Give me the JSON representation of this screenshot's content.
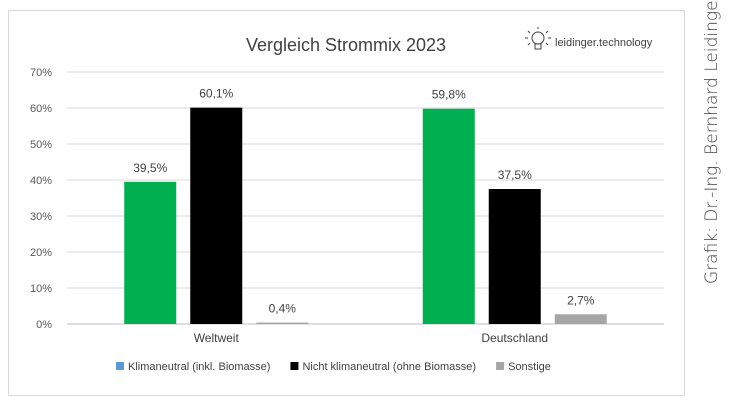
{
  "chart_data": {
    "type": "bar",
    "title": "Vergleich Strommix 2023",
    "categories": [
      "Weltweit",
      "Deutschland"
    ],
    "series": [
      {
        "name": "Klimaneutral (inkl. Biomasse)",
        "values": [
          39.5,
          59.8
        ],
        "labels": [
          "39,5%",
          "59,8%"
        ],
        "bar_color": "#00b050",
        "legend_color": "#5b9bd5"
      },
      {
        "name": "Nicht klimaneutral (ohne Biomasse)",
        "values": [
          60.1,
          37.5
        ],
        "labels": [
          "60,1%",
          "37,5%"
        ],
        "bar_color": "#000000",
        "legend_color": "#000000"
      },
      {
        "name": "Sonstige",
        "values": [
          0.4,
          2.7
        ],
        "labels": [
          "0,4%",
          "2,7%"
        ],
        "bar_color": "#a6a6a6",
        "legend_color": "#a6a6a6"
      }
    ],
    "y_ticks": [
      "0%",
      "10%",
      "20%",
      "30%",
      "40%",
      "50%",
      "60%",
      "70%"
    ],
    "ylim": [
      0,
      70
    ],
    "grid": true,
    "legend": "bottom"
  },
  "logo": {
    "text": "leidinger.technology",
    "icon": "lightbulb-icon"
  },
  "credit": "Grafik: Dr.-Ing. Bernhard Leidinger"
}
